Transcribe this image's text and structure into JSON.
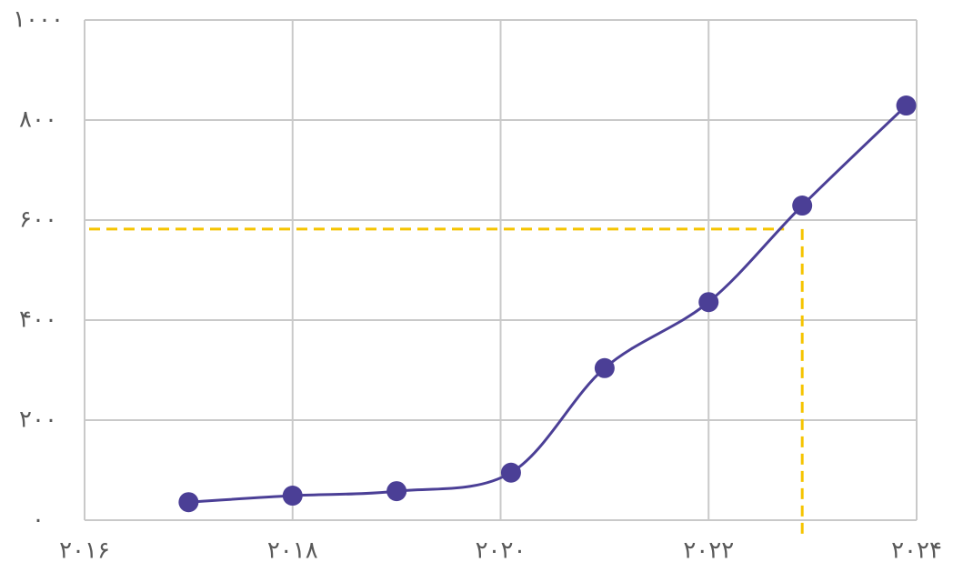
{
  "chart_data": {
    "type": "line",
    "x": [
      2017,
      2018,
      2019,
      2020.1,
      2021,
      2022,
      2022.9,
      2023.9
    ],
    "series": [
      {
        "color": "#4b3f96",
        "values": [
          36,
          49,
          58,
          95,
          304,
          436,
          629,
          829
        ]
      }
    ],
    "xlim": [
      2016,
      2024
    ],
    "xticks": [
      {
        "value": 2016,
        "label": "۲۰۱۶"
      },
      {
        "value": 2018,
        "label": "۲۰۱۸"
      },
      {
        "value": 2020,
        "label": "۲۰۲۰"
      },
      {
        "value": 2022,
        "label": "۲۰۲۲"
      },
      {
        "value": 2024,
        "label": "۲۰۲۴"
      }
    ],
    "ylim": [
      0,
      1000
    ],
    "yticks": [
      {
        "value": 0,
        "label": "۰"
      },
      {
        "value": 200,
        "label": "۲۰۰"
      },
      {
        "value": 400,
        "label": "۴۰۰"
      },
      {
        "value": 600,
        "label": "۶۰۰"
      },
      {
        "value": 800,
        "label": "۸۰۰"
      },
      {
        "value": 1000,
        "label": "۱۰۰۰"
      }
    ],
    "grid": true,
    "reference": {
      "x": 2022.9,
      "y": 582,
      "color": "#f5c400"
    }
  }
}
